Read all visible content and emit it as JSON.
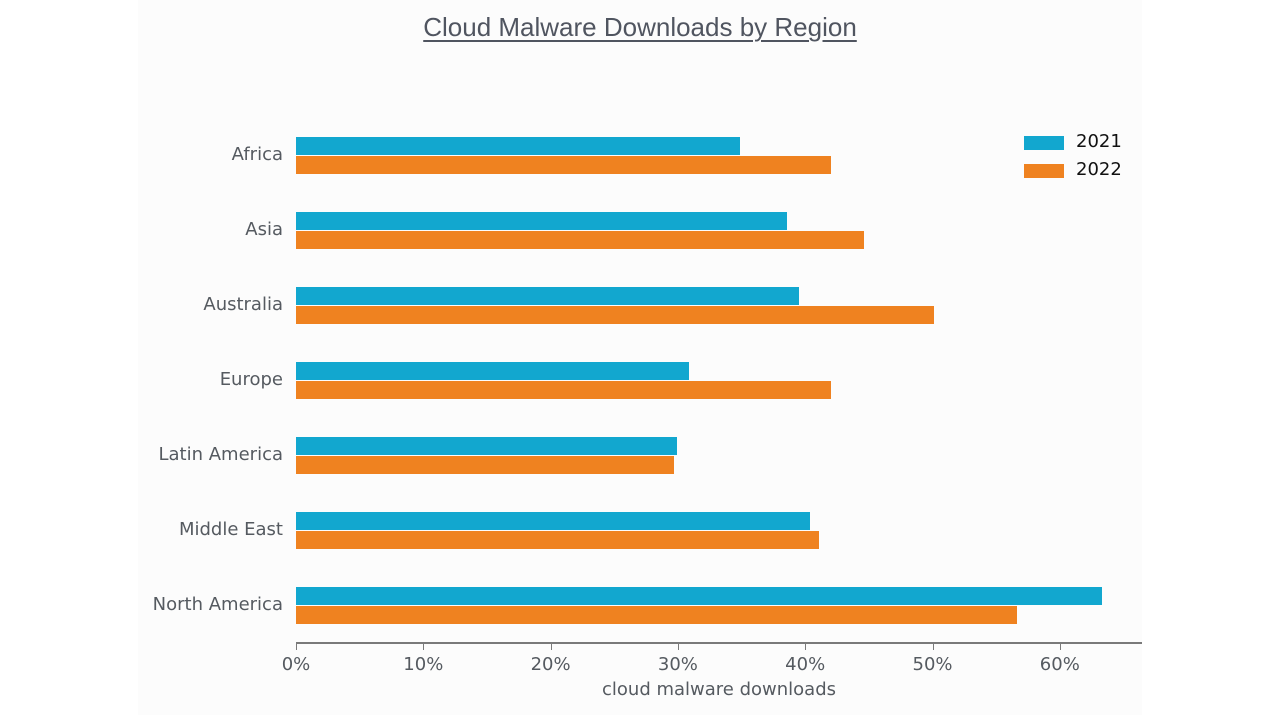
{
  "chart_data": {
    "type": "bar",
    "orientation": "horizontal",
    "title": "Cloud Malware Downloads by Region",
    "xlabel": "cloud malware downloads",
    "ylabel": "",
    "xlim": [
      0,
      66.4
    ],
    "xticks": [
      "0%",
      "10%",
      "20%",
      "30%",
      "40%",
      "50%",
      "60%"
    ],
    "xtick_values": [
      0,
      10,
      20,
      30,
      40,
      50,
      60
    ],
    "grid": false,
    "legend_position": "upper right",
    "categories": [
      "Africa",
      "Asia",
      "Australia",
      "Europe",
      "Latin America",
      "Middle East",
      "North America"
    ],
    "series": [
      {
        "name": "2021",
        "color": "#12a7cf",
        "values": [
          34.9,
          38.6,
          39.5,
          30.9,
          29.9,
          40.4,
          63.3
        ]
      },
      {
        "name": "2022",
        "color": "#ef8220",
        "values": [
          42.0,
          44.6,
          50.1,
          42.0,
          29.7,
          41.1,
          56.6
        ]
      }
    ],
    "units": "%"
  }
}
